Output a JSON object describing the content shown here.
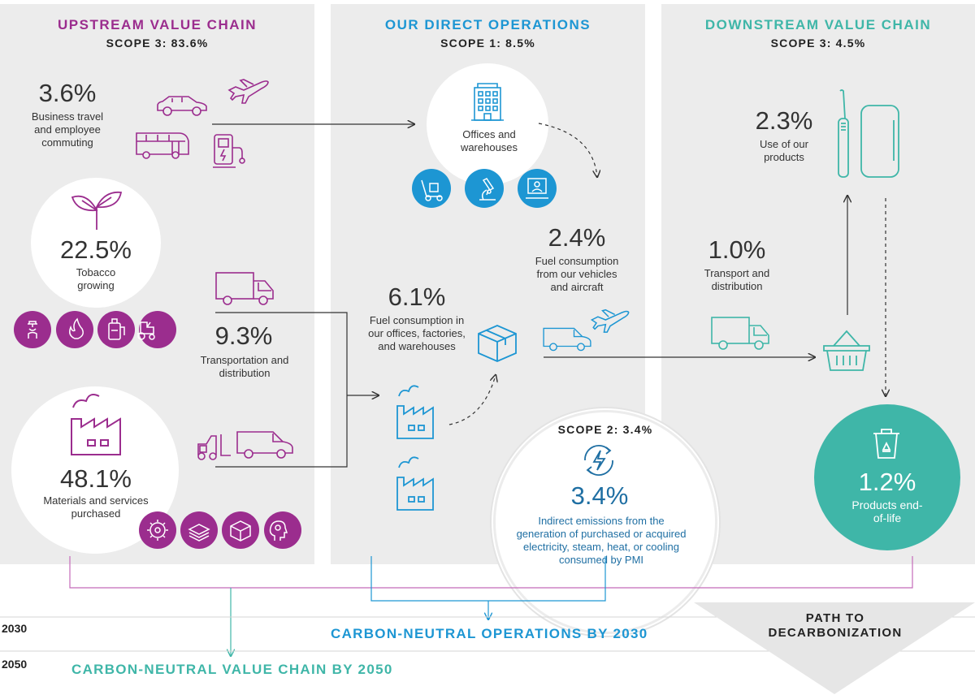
{
  "colors": {
    "upstream": "#9b2d8e",
    "direct": "#1d96d3",
    "downstream": "#3fb6a8",
    "panel": "#ececec"
  },
  "upstream": {
    "title": "UPSTREAM VALUE CHAIN",
    "scope": "SCOPE 3: 83.6%",
    "business_travel": {
      "pct": "3.6%",
      "label": "Business travel and employee commuting"
    },
    "tobacco": {
      "pct": "22.5%",
      "label": "Tobacco growing"
    },
    "transport": {
      "pct": "9.3%",
      "label": "Transportation and distribution"
    },
    "materials": {
      "pct": "48.1%",
      "label": "Materials and services purchased"
    }
  },
  "direct": {
    "title": "OUR DIRECT OPERATIONS",
    "scope": "SCOPE 1: 8.5%",
    "offices": {
      "label": "Offices and warehouses"
    },
    "vehicles": {
      "pct": "2.4%",
      "label": "Fuel consumption from our vehicles and aircraft"
    },
    "fuel": {
      "pct": "6.1%",
      "label": "Fuel consumption in our offices, factories, and warehouses"
    },
    "scope2": {
      "title": "SCOPE 2: 3.4%",
      "pct": "3.4%",
      "label": "Indirect emissions from the generation of purchased or acquired electricity, steam, heat, or cooling consumed by PMI"
    }
  },
  "downstream": {
    "title": "DOWNSTREAM VALUE CHAIN",
    "scope": "SCOPE 3: 4.5%",
    "use": {
      "pct": "2.3%",
      "label": "Use of our products"
    },
    "transport": {
      "pct": "1.0%",
      "label": "Transport and distribution"
    },
    "eol": {
      "pct": "1.2%",
      "label": "Products end-of-life"
    }
  },
  "timeline": {
    "y2030": "2030",
    "y2050": "2050",
    "ops_2030": "CARBON-NEUTRAL OPERATIONS BY 2030",
    "chain_2050": "CARBON-NEUTRAL VALUE CHAIN BY 2050",
    "path": "PATH TO DECARBONIZATION"
  }
}
